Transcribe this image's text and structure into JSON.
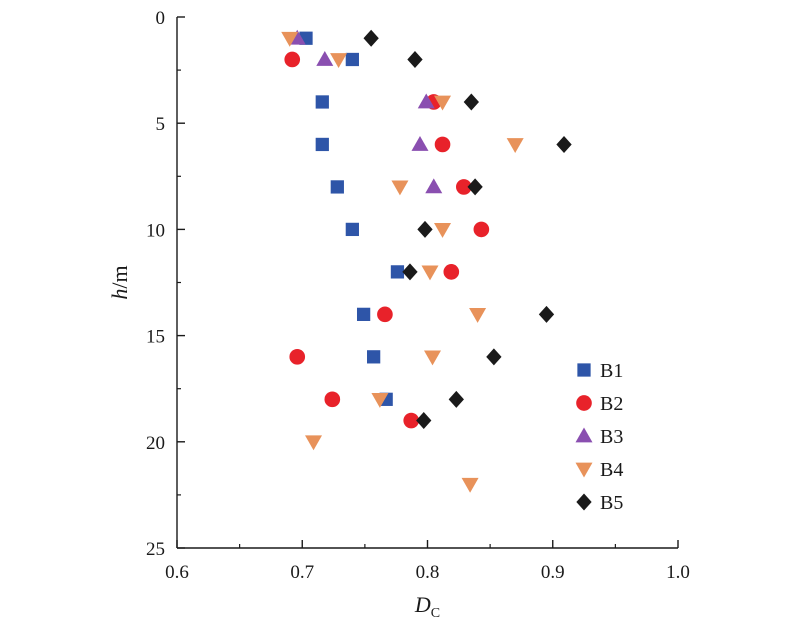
{
  "chart_data": {
    "type": "scatter",
    "xlabel": {
      "main": "D",
      "sub": "C"
    },
    "ylabel": {
      "main": "h",
      "rest": "/m"
    },
    "xlim": [
      0.6,
      1.0
    ],
    "ylim": [
      0,
      25
    ],
    "y_inverted": true,
    "x_ticks": [
      "0.6",
      "0.7",
      "0.8",
      "0.9",
      "1.0"
    ],
    "y_ticks": [
      "0",
      "5",
      "10",
      "15",
      "20",
      "25"
    ],
    "legend_position": "lower-right",
    "grid": false,
    "series": [
      {
        "name": "B1",
        "marker": "square",
        "color": "#2e55a8",
        "points": [
          [
            0.703,
            1
          ],
          [
            0.74,
            2
          ],
          [
            0.716,
            4
          ],
          [
            0.716,
            6
          ],
          [
            0.728,
            8
          ],
          [
            0.74,
            10
          ],
          [
            0.776,
            12
          ],
          [
            0.749,
            14
          ],
          [
            0.757,
            16
          ],
          [
            0.767,
            18
          ]
        ]
      },
      {
        "name": "B2",
        "marker": "circle",
        "color": "#e8222a",
        "points": [
          [
            0.692,
            2
          ],
          [
            0.805,
            4
          ],
          [
            0.812,
            6
          ],
          [
            0.829,
            8
          ],
          [
            0.843,
            10
          ],
          [
            0.819,
            12
          ],
          [
            0.766,
            14
          ],
          [
            0.696,
            16
          ],
          [
            0.724,
            18
          ],
          [
            0.787,
            19
          ]
        ]
      },
      {
        "name": "B3",
        "marker": "triangle-up",
        "color": "#8a4fb0",
        "points": [
          [
            0.696,
            1
          ],
          [
            0.718,
            2
          ],
          [
            0.799,
            4
          ],
          [
            0.794,
            6
          ],
          [
            0.805,
            8
          ]
        ]
      },
      {
        "name": "B4",
        "marker": "triangle-down",
        "color": "#e8925a",
        "points": [
          [
            0.69,
            1
          ],
          [
            0.729,
            2
          ],
          [
            0.812,
            4
          ],
          [
            0.87,
            6
          ],
          [
            0.778,
            8
          ],
          [
            0.812,
            10
          ],
          [
            0.802,
            12
          ],
          [
            0.84,
            14
          ],
          [
            0.804,
            16
          ],
          [
            0.762,
            18
          ],
          [
            0.709,
            20
          ],
          [
            0.834,
            22
          ]
        ]
      },
      {
        "name": "B5",
        "marker": "diamond",
        "color": "#1a1a1a",
        "points": [
          [
            0.755,
            1
          ],
          [
            0.79,
            2
          ],
          [
            0.835,
            4
          ],
          [
            0.909,
            6
          ],
          [
            0.838,
            8
          ],
          [
            0.798,
            10
          ],
          [
            0.786,
            12
          ],
          [
            0.895,
            14
          ],
          [
            0.853,
            16
          ],
          [
            0.823,
            18
          ],
          [
            0.797,
            19
          ]
        ]
      }
    ]
  }
}
